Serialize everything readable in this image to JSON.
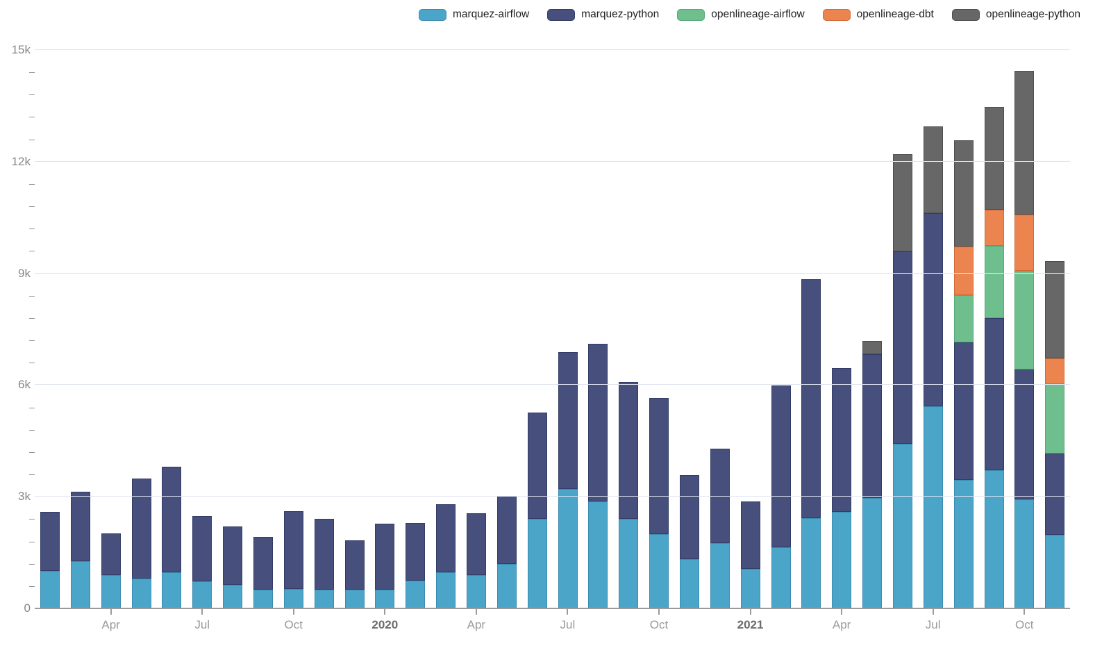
{
  "legend": {
    "items": [
      {
        "label": "marquez-airflow",
        "color": "#4ba5c9",
        "border": "#3a8cb0"
      },
      {
        "label": "marquez-python",
        "color": "#47507c",
        "border": "#323c66"
      },
      {
        "label": "openlineage-airflow",
        "color": "#6fbe8d",
        "border": "#57a876"
      },
      {
        "label": "openlineage-dbt",
        "color": "#ec8450",
        "border": "#d06a38"
      },
      {
        "label": "openlineage-python",
        "color": "#676767",
        "border": "#4e4e4e"
      }
    ]
  },
  "chart_data": {
    "type": "bar",
    "stacked": true,
    "title": "",
    "xlabel": "",
    "ylabel": "",
    "grid": "horizontal",
    "legend_position": "top-right",
    "x": [
      "2019-02",
      "2019-03",
      "2019-04",
      "2019-05",
      "2019-06",
      "2019-07",
      "2019-08",
      "2019-09",
      "2019-10",
      "2019-11",
      "2019-12",
      "2020-01",
      "2020-02",
      "2020-03",
      "2020-04",
      "2020-05",
      "2020-06",
      "2020-07",
      "2020-08",
      "2020-09",
      "2020-10",
      "2020-11",
      "2020-12",
      "2021-01",
      "2021-02",
      "2021-03",
      "2021-04",
      "2021-05",
      "2021-06",
      "2021-07",
      "2021-08",
      "2021-09",
      "2021-10",
      "2021-11"
    ],
    "x_ticks": [
      {
        "index": 2,
        "label": "Apr",
        "year": false
      },
      {
        "index": 5,
        "label": "Jul",
        "year": false
      },
      {
        "index": 8,
        "label": "Oct",
        "year": false
      },
      {
        "index": 11,
        "label": "2020",
        "year": true
      },
      {
        "index": 14,
        "label": "Apr",
        "year": false
      },
      {
        "index": 17,
        "label": "Jul",
        "year": false
      },
      {
        "index": 20,
        "label": "Oct",
        "year": false
      },
      {
        "index": 23,
        "label": "2021",
        "year": true
      },
      {
        "index": 26,
        "label": "Apr",
        "year": false
      },
      {
        "index": 29,
        "label": "Jul",
        "year": false
      },
      {
        "index": 32,
        "label": "Oct",
        "year": false
      }
    ],
    "y_axis": {
      "min": 0,
      "max": 15000,
      "major_step": 3000,
      "minor_step": 600,
      "tick_labels": [
        "0",
        "3k",
        "6k",
        "9k",
        "12k",
        "15k"
      ]
    },
    "series": [
      {
        "name": "marquez-airflow",
        "color": "#4ba5c9",
        "css": "seg-blue",
        "values": [
          1000,
          1270,
          900,
          800,
          970,
          730,
          640,
          500,
          530,
          500,
          500,
          500,
          750,
          970,
          900,
          1200,
          2400,
          3200,
          2870,
          2400,
          2000,
          1330,
          1760,
          1060,
          1650,
          2430,
          2600,
          2970,
          4430,
          5430,
          3460,
          3720,
          2930,
          1980
        ]
      },
      {
        "name": "marquez-python",
        "color": "#47507c",
        "css": "seg-navy",
        "values": [
          1600,
          1860,
          1120,
          2680,
          2830,
          1760,
          1570,
          1430,
          2090,
          1900,
          1330,
          1780,
          1550,
          1820,
          1650,
          1830,
          2860,
          3690,
          4230,
          3680,
          3650,
          2260,
          2530,
          1820,
          4340,
          6410,
          3860,
          3860,
          5160,
          5180,
          3690,
          4070,
          3490,
          2190
        ]
      },
      {
        "name": "openlineage-airflow",
        "color": "#6fbe8d",
        "css": "seg-green",
        "values": [
          0,
          0,
          0,
          0,
          0,
          0,
          0,
          0,
          0,
          0,
          0,
          0,
          0,
          0,
          0,
          0,
          0,
          0,
          0,
          0,
          0,
          0,
          0,
          0,
          0,
          0,
          0,
          0,
          0,
          0,
          1270,
          1950,
          2640,
          1860
        ]
      },
      {
        "name": "openlineage-dbt",
        "color": "#ec8450",
        "css": "seg-orange",
        "values": [
          0,
          0,
          0,
          0,
          0,
          0,
          0,
          0,
          0,
          0,
          0,
          0,
          0,
          0,
          0,
          0,
          0,
          0,
          0,
          0,
          0,
          0,
          0,
          0,
          0,
          0,
          0,
          0,
          0,
          0,
          1310,
          970,
          1520,
          690
        ]
      },
      {
        "name": "openlineage-python",
        "color": "#676767",
        "css": "seg-gray",
        "values": [
          0,
          0,
          0,
          0,
          0,
          0,
          0,
          0,
          0,
          0,
          0,
          0,
          0,
          0,
          0,
          0,
          0,
          0,
          0,
          0,
          0,
          0,
          0,
          0,
          0,
          0,
          0,
          360,
          2620,
          2340,
          2850,
          2770,
          3870,
          2600
        ]
      }
    ]
  }
}
